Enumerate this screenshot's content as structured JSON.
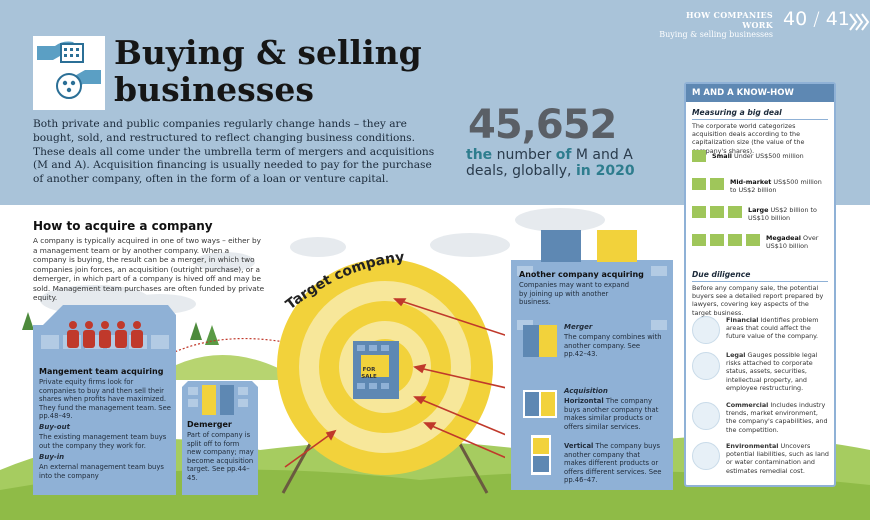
{
  "header": {
    "series": "HOW COMPANIES WORK",
    "section": "Buying & selling businesses",
    "page_left": "40",
    "page_right": "41",
    "arrows_icon": "chevron-right-icon"
  },
  "title": "Buying & selling businesses",
  "intro": "Both private and public companies regularly change hands – they are bought, sold, and restructured to reflect changing business conditions. These deals all come under the umbrella term of mergers and acquisitions (M and A). Acquisition financing is usually needed to pay for the purchase of another company, often in the form of a loan or venture capital.",
  "stat": {
    "number": "45,652",
    "the": "the",
    "w1": "number",
    "of": "of",
    "w2": "M and A",
    "line2": "deals, globally,",
    "year": "in 2020"
  },
  "how": {
    "title": "How to acquire a company",
    "text": "A company is typically acquired in one of two ways – either by a management team or by another company. When a company is buying, the result can be a merger, in which two companies join forces, an acquisition (outright purchase), or a demerger, in which part of a company is hived off and may be sold. Management team purchases are often funded by private equity."
  },
  "management": {
    "title": "Mangement team acquiring",
    "text": "Private equity firms look for companies to buy and then sell their shares when profits have maximized. They fund the management team. See pp.48–49.",
    "buyout_title": "Buy-out",
    "buyout_text": "The existing management team buys out the company they work for.",
    "buyin_title": "Buy-in",
    "buyin_text": "An external management team buys into the company"
  },
  "demerger": {
    "title": "Demerger",
    "text": "Part of company is split off to form new company; may become acquisition target. See pp.44–45."
  },
  "target": {
    "label": "Target company",
    "sign": "FOR SALE"
  },
  "another": {
    "title": "Another company acquiring",
    "text": "Companies may want to expand by joining up with another business.",
    "merger_title": "Merger",
    "merger_text": "The company combines with another company. See pp.42–43.",
    "acq_title": "Acquisition",
    "horiz_title": "Horizontal",
    "horiz_text": "The company buys another company that makes similar products or offers similar services.",
    "vert_title": "Vertical",
    "vert_text": "The company buys another company that makes different products or offers different services. See pp.46–47."
  },
  "panel": {
    "title": "M AND A KNOW-HOW",
    "measure_title": "Measuring a big deal",
    "measure_text": "The corporate world categorizes acquisition deals according to the capitalization size (the value of the company's shares).",
    "tiers": [
      {
        "name": "Small",
        "range": "Under US$500 million",
        "blocks": 1
      },
      {
        "name": "Mid-market",
        "range": "US$500 million to US$2 billion",
        "blocks": 2
      },
      {
        "name": "Large",
        "range": "US$2 billion to US$10 billion",
        "blocks": 3
      },
      {
        "name": "Megadeal",
        "range": "Over US$10 billion",
        "blocks": 4
      }
    ],
    "dd_title": "Due diligence",
    "dd_text": "Before any company sale, the potential buyers see a detailed report prepared by lawyers, covering key aspects of the target business.",
    "dd_items": [
      {
        "name": "Financial",
        "text": "Identifies problem areas that could affect the future value of the company.",
        "icon": "money-stack-icon"
      },
      {
        "name": "Legal",
        "text": "Gauges possible legal risks attached to corporate status, assets, securities, intellectual property, and employee restructuring.",
        "icon": "gavel-icon"
      },
      {
        "name": "Commercial",
        "text": "Includes industry trends, market environment, the company's capabilities, and the competition.",
        "icon": "pie-chart-icon"
      },
      {
        "name": "Environmental",
        "text": "Uncovers potential liabilities, such as land or water contamination and estimates remedial cost.",
        "icon": "trees-icon"
      }
    ]
  },
  "colors": {
    "sky": "#a9c3d9",
    "building": "#8fb1d6",
    "target_yellow": "#f2d23b",
    "target_light": "#f7e79a",
    "arrow": "#c0392b",
    "accent_teal": "#2e7d8e",
    "grass": "#9fc65a"
  }
}
